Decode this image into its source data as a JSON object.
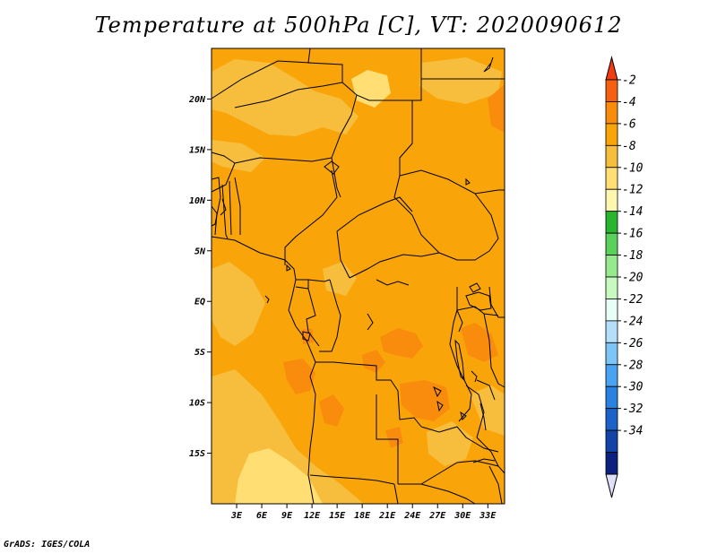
{
  "title": "Temperature at 500hPa [C], VT: 2020090612",
  "credit": "GrADS: IGES/COLA",
  "map": {
    "projection": "lat-lon",
    "lon_range": [
      0,
      35
    ],
    "lat_range": [
      -20,
      25
    ],
    "lat_ticks": [
      {
        "value": 20,
        "label": "20N"
      },
      {
        "value": 15,
        "label": "15N"
      },
      {
        "value": 10,
        "label": "10N"
      },
      {
        "value": 5,
        "label": "5N"
      },
      {
        "value": 0,
        "label": "EQ"
      },
      {
        "value": -5,
        "label": "5S"
      },
      {
        "value": -10,
        "label": "10S"
      },
      {
        "value": -15,
        "label": "15S"
      }
    ],
    "lon_ticks": [
      {
        "value": 3,
        "label": "3E"
      },
      {
        "value": 6,
        "label": "6E"
      },
      {
        "value": 9,
        "label": "9E"
      },
      {
        "value": 12,
        "label": "12E"
      },
      {
        "value": 15,
        "label": "15E"
      },
      {
        "value": 18,
        "label": "18E"
      },
      {
        "value": 21,
        "label": "21E"
      },
      {
        "value": 24,
        "label": "24E"
      },
      {
        "value": 27,
        "label": "27E"
      },
      {
        "value": 30,
        "label": "30E"
      },
      {
        "value": 33,
        "label": "33E"
      }
    ],
    "background_color": "#F9A509",
    "border_color": "#000000"
  },
  "colorbar": {
    "labels": [
      "-2",
      "-4",
      "-6",
      "-8",
      "-10",
      "-12",
      "-14",
      "-16",
      "-18",
      "-20",
      "-22",
      "-24",
      "-26",
      "-28",
      "-30",
      "-32",
      "-34"
    ],
    "colors": [
      "#F55F12",
      "#F98C0C",
      "#F9A509",
      "#F7BD3C",
      "#FFDE73",
      "#FFF7AF",
      "#2AB530",
      "#5BD15D",
      "#96E98C",
      "#C8F9C0",
      "#E8FFF8",
      "#B4DFF8",
      "#7DC5F6",
      "#4AA3F2",
      "#2A82E0",
      "#1C62C8",
      "#1244A8",
      "#0C2080"
    ],
    "top_arrow_color": "#F03C10",
    "bottom_arrow_color": "#E0E0F8"
  }
}
